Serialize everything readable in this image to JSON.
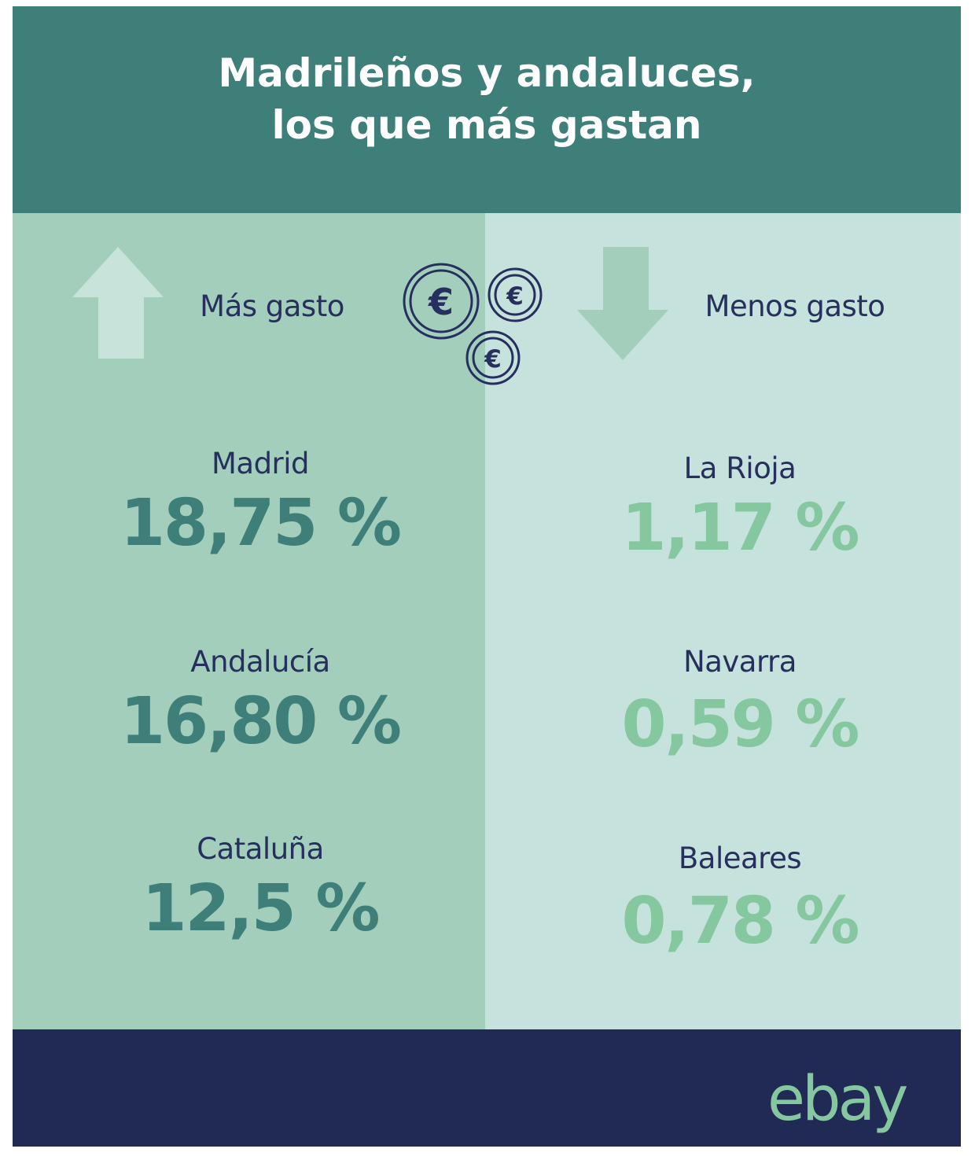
{
  "header": {
    "title_line1": "Madrileños y andaluces,",
    "title_line2": "los que más gastan"
  },
  "colors": {
    "header_bg": "#3e7f79",
    "left_panel_bg": "#a3cebb",
    "right_panel_bg": "#c6e2dc",
    "footer_bg": "#212a54",
    "high_value": "#3e7f79",
    "low_value": "#85c8a0",
    "label_text": "#272f5e"
  },
  "more_spending": {
    "label": "Más gasto",
    "icon": "arrow-up-icon",
    "regions": [
      {
        "name": "Madrid",
        "value": "18,75 %"
      },
      {
        "name": "Andalucía",
        "value": "16,80 %"
      },
      {
        "name": "Cataluña",
        "value": "12,5 %"
      }
    ]
  },
  "less_spending": {
    "label": "Menos gasto",
    "icon": "arrow-down-icon",
    "regions": [
      {
        "name": "La Rioja",
        "value": "1,17 %"
      },
      {
        "name": "Navarra",
        "value": "0,59 %"
      },
      {
        "name": "Baleares",
        "value": "0,78 %"
      }
    ]
  },
  "coins_icon": "euro-coins-icon",
  "footer": {
    "logo": "ebay"
  }
}
